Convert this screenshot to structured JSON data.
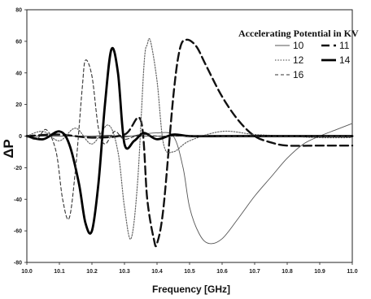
{
  "chart_data": {
    "type": "line",
    "title": "",
    "xlabel": "Frequency [GHz]",
    "ylabel": "ΔP",
    "xlim": [
      10.0,
      11.0
    ],
    "ylim": [
      -80,
      80
    ],
    "xticks": [
      "10.0",
      "10.1",
      "10.2",
      "10.3",
      "10.4",
      "10.5",
      "10.6",
      "10.7",
      "10.8",
      "10.9",
      "11.0"
    ],
    "yticks": [
      "80",
      "60",
      "40",
      "20",
      "0",
      "-20",
      "-40",
      "-60",
      "-80"
    ],
    "grid": false,
    "legend": {
      "title": "Accelerating Potential in KV",
      "placement": "top-right"
    },
    "series": [
      {
        "name": "10",
        "style": "thin-solid",
        "color": "#555555",
        "x": [
          10.0,
          10.1,
          10.2,
          10.25,
          10.3,
          10.35,
          10.4,
          10.45,
          10.48,
          10.5,
          10.53,
          10.56,
          10.6,
          10.65,
          10.7,
          10.75,
          10.8,
          10.85,
          10.9,
          10.95,
          11.0
        ],
        "y": [
          0,
          0,
          0,
          0.5,
          -0.5,
          1,
          2,
          0,
          -20,
          -45,
          -62,
          -68,
          -65,
          -52,
          -38,
          -26,
          -14,
          -5,
          0,
          4,
          8
        ]
      },
      {
        "name": "11",
        "style": "thick-dashed",
        "color": "#111111",
        "x": [
          10.0,
          10.1,
          10.2,
          10.3,
          10.35,
          10.37,
          10.39,
          10.4,
          10.42,
          10.45,
          10.47,
          10.49,
          10.52,
          10.55,
          10.6,
          10.65,
          10.7,
          10.75,
          10.8,
          10.9,
          11.0
        ],
        "y": [
          0,
          1,
          -1,
          1,
          10,
          -40,
          -65,
          -68,
          -45,
          25,
          55,
          61,
          57,
          45,
          25,
          10,
          0,
          -4,
          -6,
          -6,
          -6
        ]
      },
      {
        "name": "12",
        "style": "dotted",
        "color": "#666666",
        "x": [
          10.0,
          10.05,
          10.1,
          10.15,
          10.2,
          10.25,
          10.28,
          10.3,
          10.32,
          10.34,
          10.36,
          10.37,
          10.38,
          10.4,
          10.42,
          10.45,
          10.5,
          10.6,
          10.7,
          10.8,
          10.9,
          11.0
        ],
        "y": [
          0,
          3,
          -3,
          5,
          -5,
          7,
          -10,
          -45,
          -65,
          -30,
          45,
          58,
          60,
          35,
          -5,
          -10,
          -3,
          3,
          1,
          0,
          -1,
          -1
        ]
      },
      {
        "name": "14",
        "style": "thick-solid",
        "color": "#000000",
        "x": [
          10.0,
          10.05,
          10.1,
          10.13,
          10.16,
          10.18,
          10.2,
          10.22,
          10.24,
          10.26,
          10.28,
          10.3,
          10.33,
          10.36,
          10.4,
          10.45,
          10.5,
          10.6,
          10.7,
          10.8,
          10.9,
          11.0
        ],
        "y": [
          0,
          -2,
          3,
          -5,
          -30,
          -55,
          -60,
          -30,
          20,
          55,
          40,
          -5,
          -3,
          2,
          -2,
          1,
          0,
          0,
          0,
          0,
          0,
          0
        ]
      },
      {
        "name": "16",
        "style": "thin-dashed",
        "color": "#333333",
        "x": [
          10.0,
          10.03,
          10.06,
          10.09,
          10.11,
          10.13,
          10.15,
          10.17,
          10.18,
          10.2,
          10.22,
          10.24,
          10.27,
          10.3,
          10.35,
          10.4,
          10.5,
          10.6,
          10.8,
          11.0
        ],
        "y": [
          0,
          -2,
          4,
          -10,
          -40,
          -52,
          -20,
          30,
          48,
          38,
          5,
          -5,
          3,
          -2,
          1,
          0,
          0,
          0,
          0,
          0
        ]
      }
    ]
  }
}
